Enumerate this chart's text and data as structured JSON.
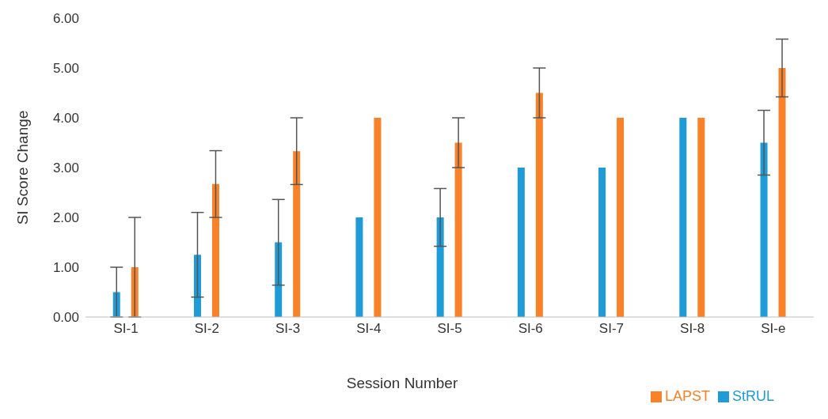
{
  "chart_data": {
    "type": "bar",
    "xlabel": "Session Number",
    "ylabel": "SI Score Change",
    "categories": [
      "SI-1",
      "SI-2",
      "SI-3",
      "SI-4",
      "SI-5",
      "SI-6",
      "SI-7",
      "SI-8",
      "SI-e"
    ],
    "series": [
      {
        "name": "StRUL",
        "color": "#1f9bd7",
        "values": [
          0.5,
          1.25,
          1.5,
          2.0,
          2.0,
          3.0,
          3.0,
          4.0,
          3.5
        ],
        "errors": [
          0.5,
          0.85,
          0.86,
          0,
          0.58,
          0,
          0,
          0,
          0.65
        ]
      },
      {
        "name": "LAPST",
        "color": "#f98128",
        "values": [
          1.0,
          2.67,
          3.33,
          4.0,
          3.5,
          4.5,
          4.0,
          4.0,
          5.0
        ],
        "errors": [
          1.0,
          0.67,
          0.67,
          0,
          0.5,
          0.5,
          0,
          0,
          0.58
        ]
      }
    ],
    "ylim": [
      0,
      6
    ],
    "yticks": [
      {
        "value": 0,
        "label": "0.00"
      },
      {
        "value": 1,
        "label": "1.00"
      },
      {
        "value": 2,
        "label": "2.00"
      },
      {
        "value": 3,
        "label": "3.00"
      },
      {
        "value": 4,
        "label": "4.00"
      },
      {
        "value": 5,
        "label": "5.00"
      },
      {
        "value": 6,
        "label": "6.00"
      }
    ],
    "grid": false,
    "legend": "bottom right"
  }
}
